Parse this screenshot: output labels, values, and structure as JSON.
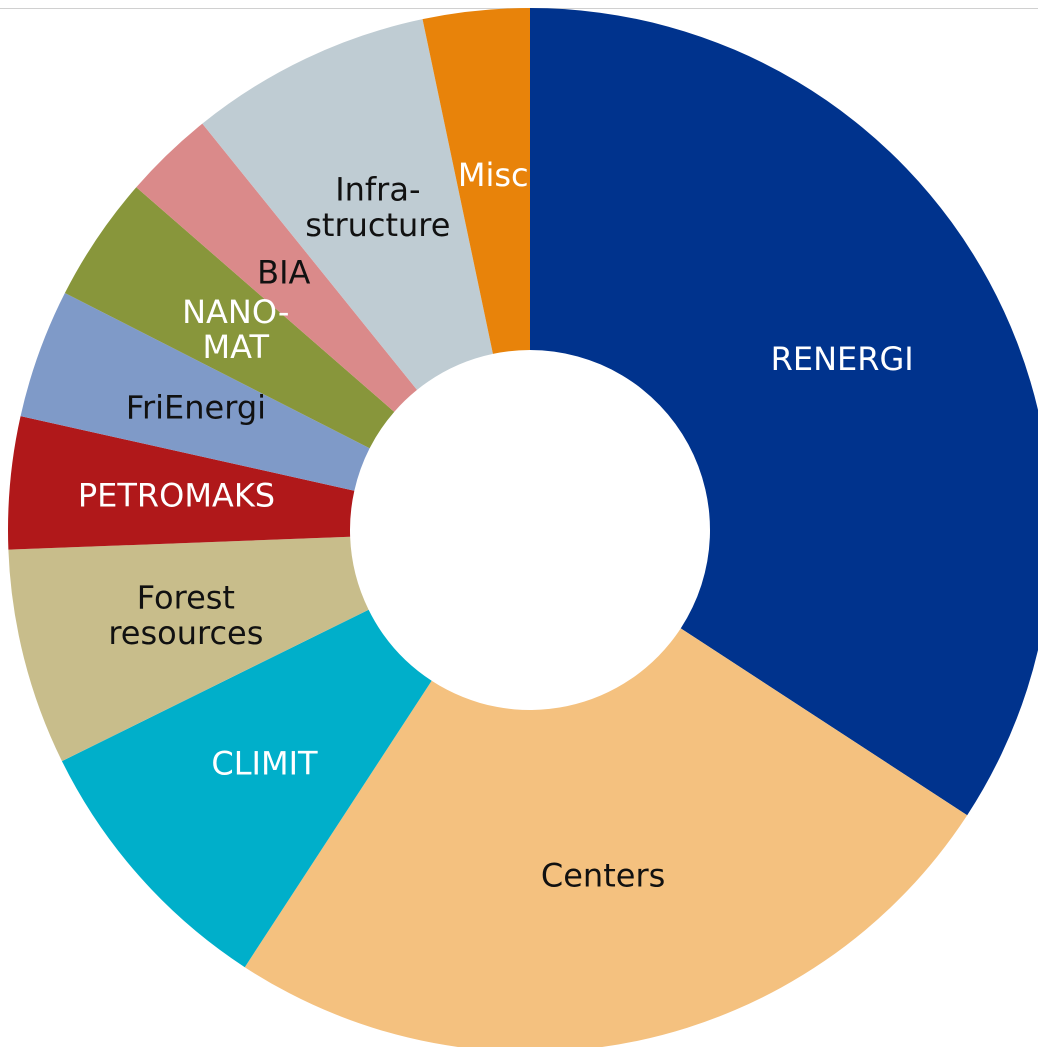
{
  "chart_data": {
    "type": "pie",
    "categories": [
      "RENERGI",
      "Centers",
      "CLIMIT",
      "Forest\nresources",
      "PETROMAKS",
      "FriEnergi",
      "NANO-\nMAT",
      "BIA",
      "Infra-\nstructure",
      "Misc"
    ],
    "values": [
      34.2,
      25,
      8.5,
      6.7,
      4.1,
      4,
      3.9,
      2.8,
      7.5,
      3.3
    ],
    "colors": [
      "#00338d",
      "#f4c17f",
      "#00afca",
      "#c8bd8b",
      "#b0181a",
      "#7f9ac8",
      "#88963b",
      "#da8a8a",
      "#bfccd3",
      "#e8830a"
    ]
  }
}
